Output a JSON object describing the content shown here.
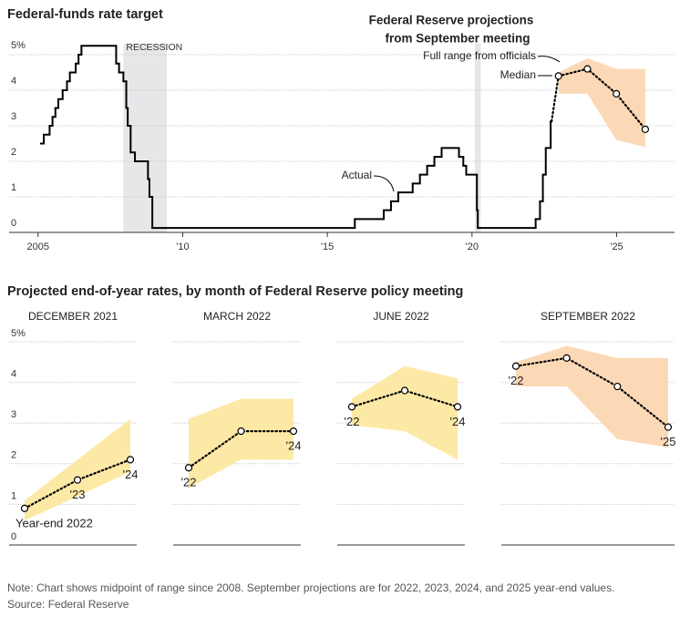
{
  "chart_data": [
    {
      "type": "step",
      "title": "Federal-funds rate target",
      "x": [
        2005.1,
        2005.2,
        2005.4,
        2005.5,
        2005.6,
        2005.7,
        2005.85,
        2006.0,
        2006.1,
        2006.3,
        2006.4,
        2006.5,
        2007.7,
        2007.8,
        2007.95,
        2008.05,
        2008.1,
        2008.2,
        2008.35,
        2008.8,
        2008.85,
        2008.95,
        2015.95,
        2016.95,
        2017.2,
        2017.45,
        2017.95,
        2018.2,
        2018.45,
        2018.7,
        2018.95,
        2019.55,
        2019.7,
        2019.8,
        2020.17,
        2020.2,
        2022.2,
        2022.35,
        2022.45,
        2022.55,
        2022.72
      ],
      "values": [
        2.5,
        2.75,
        3.0,
        3.25,
        3.5,
        3.75,
        4.0,
        4.25,
        4.5,
        4.75,
        5.0,
        5.25,
        4.75,
        4.5,
        4.25,
        3.5,
        3.0,
        2.25,
        2.0,
        1.5,
        1.0,
        0.125,
        0.375,
        0.625,
        0.875,
        1.125,
        1.375,
        1.625,
        1.875,
        2.125,
        2.375,
        2.125,
        1.875,
        1.625,
        0.625,
        0.125,
        0.375,
        0.875,
        1.625,
        2.375,
        3.125
      ],
      "color": "#000000",
      "xlim": [
        2004,
        2027
      ],
      "xticks": [
        {
          "value": 2005,
          "label": "2005"
        },
        {
          "value": 2010,
          "label": "'10"
        },
        {
          "value": 2015,
          "label": "'15"
        },
        {
          "value": 2020,
          "label": "'20"
        },
        {
          "value": 2025,
          "label": "'25"
        }
      ],
      "ylim": [
        0,
        5
      ],
      "yticks": [
        0,
        1,
        2,
        3,
        4,
        {
          "value": 5,
          "label": "5%"
        }
      ],
      "grid": true,
      "recessions": [
        [
          2007.95,
          2009.45
        ],
        [
          2020.1,
          2020.3
        ]
      ],
      "recession_label": "RECESSION",
      "recession_color": "#e6e7e9",
      "projection_title": [
        "Federal Reserve projections",
        "from September meeting"
      ],
      "projection": {
        "x": [
          2022.99,
          2023.99,
          2024.99,
          2025.99
        ],
        "median": [
          4.4,
          4.6,
          3.9,
          2.9
        ],
        "low": [
          3.9,
          3.9,
          2.6,
          2.4
        ],
        "high": [
          4.5,
          4.9,
          4.6,
          4.6
        ]
      },
      "range_color": "#fcd9b6",
      "range_label": "Full range from officials",
      "median_label": "Median",
      "actual_label": "Actual"
    },
    {
      "type": "range",
      "title": "DECEMBER 2021",
      "categories": [
        "Year-end 2022",
        "'23",
        "'24"
      ],
      "median": [
        0.9,
        1.6,
        2.1
      ],
      "low": [
        0.6,
        1.2,
        1.8
      ],
      "high": [
        1.1,
        2.1,
        3.1
      ],
      "range_color": "#fde9a6",
      "ylim": [
        0,
        5
      ],
      "yticks": [
        0,
        1,
        2,
        3,
        4,
        {
          "value": 5,
          "label": "5%"
        }
      ]
    },
    {
      "type": "range",
      "title": "MARCH 2022",
      "categories": [
        "'22",
        null,
        "'24"
      ],
      "median": [
        1.9,
        2.8,
        2.8
      ],
      "low": [
        1.4,
        2.1,
        2.1
      ],
      "high": [
        3.1,
        3.6,
        3.6
      ],
      "range_color": "#fde9a6"
    },
    {
      "type": "range",
      "title": "JUNE 2022",
      "categories": [
        "'22",
        null,
        "'24"
      ],
      "median": [
        3.4,
        3.8,
        3.4
      ],
      "low": [
        2.95,
        2.8,
        2.1
      ],
      "high": [
        3.6,
        4.4,
        4.1
      ],
      "range_color": "#fde9a6"
    },
    {
      "type": "range",
      "title": "SEPTEMBER 2022",
      "categories": [
        "'22",
        null,
        null,
        "'25"
      ],
      "median": [
        4.4,
        4.6,
        3.9,
        2.9
      ],
      "low": [
        3.9,
        3.9,
        2.6,
        2.4
      ],
      "high": [
        4.5,
        4.9,
        4.6,
        4.6
      ],
      "range_color": "#fcd9b6"
    }
  ],
  "section_title": "Projected end-of-year rates, by month of Federal Reserve policy meeting",
  "note": "Note: Chart shows midpoint of range since 2008. September projections are for 2022, 2023, 2024, and 2025 year-end values.",
  "source": "Source: Federal Reserve"
}
